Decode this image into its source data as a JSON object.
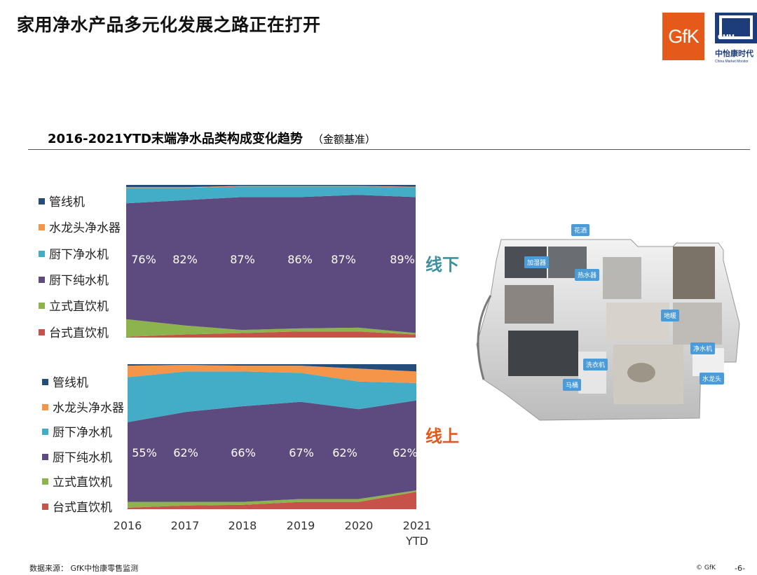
{
  "header": {
    "title": "家用净水产品多元化发展之路正在打开",
    "gfk_logo_text": "GfK",
    "cmm_logo": {
      "box_text": "CMM",
      "cn": "中怡康时代",
      "en": "China Market Monitor"
    }
  },
  "chart_header": {
    "title": "2016-2021YTD末端净水品类构成变化趋势",
    "subtitle": "（金额基准）"
  },
  "legend": [
    {
      "label": "管线机",
      "color": "#244d7c"
    },
    {
      "label": "水龙头净水器",
      "color": "#f5954a"
    },
    {
      "label": "厨下净水机",
      "color": "#43acc7"
    },
    {
      "label": "厨下纯水机",
      "color": "#5d4a7e"
    },
    {
      "label": "立式直饮机",
      "color": "#8db34f"
    },
    {
      "label": "台式直饮机",
      "color": "#c6524a"
    }
  ],
  "chart_data": [
    {
      "type": "area",
      "name": "线下",
      "categories": [
        "2016",
        "2017",
        "2018",
        "2019",
        "2020",
        "2021 YTD"
      ],
      "stack_order": [
        "台式直饮机",
        "立式直饮机",
        "厨下纯水机",
        "厨下净水机",
        "水龙头净水器",
        "管线机"
      ],
      "series": [
        {
          "name": "台式直饮机",
          "values": [
            0.5,
            2,
            3,
            4,
            4,
            2
          ]
        },
        {
          "name": "立式直饮机",
          "values": [
            11.5,
            6,
            2,
            2,
            2.5,
            1
          ]
        },
        {
          "name": "厨下纯水机",
          "values": [
            76,
            82,
            87,
            86,
            87,
            89
          ]
        },
        {
          "name": "厨下净水机",
          "values": [
            10,
            8,
            7,
            7,
            5.5,
            6.5
          ]
        },
        {
          "name": "水龙头净水器",
          "values": [
            0.5,
            0.5,
            0.3,
            0.3,
            0.3,
            0.3
          ]
        },
        {
          "name": "管线机",
          "values": [
            1.5,
            1.5,
            0.7,
            0.7,
            0.7,
            1.2
          ]
        }
      ],
      "data_labels": [
        "76%",
        "82%",
        "87%",
        "86%",
        "87%",
        "89%"
      ],
      "ylim": [
        0,
        100
      ]
    },
    {
      "type": "area",
      "name": "线上",
      "categories": [
        "2016",
        "2017",
        "2018",
        "2019",
        "2020",
        "2021 YTD"
      ],
      "stack_order": [
        "台式直饮机",
        "立式直饮机",
        "厨下纯水机",
        "厨下净水机",
        "水龙头净水器",
        "管线机"
      ],
      "series": [
        {
          "name": "台式直饮机",
          "values": [
            1,
            2.5,
            3,
            5,
            5,
            12
          ]
        },
        {
          "name": "立式直饮机",
          "values": [
            4,
            2.5,
            2,
            2,
            2,
            1
          ]
        },
        {
          "name": "厨下纯水机",
          "values": [
            55,
            62,
            66,
            67,
            62,
            62
          ]
        },
        {
          "name": "厨下净水机",
          "values": [
            31,
            28,
            24,
            20,
            19,
            12
          ]
        },
        {
          "name": "水龙头净水器",
          "values": [
            8,
            4.5,
            4,
            5,
            9,
            8
          ]
        },
        {
          "name": "管线机",
          "values": [
            1,
            0.5,
            1,
            1,
            3,
            5
          ]
        }
      ],
      "data_labels": [
        "55%",
        "62%",
        "66%",
        "67%",
        "62%",
        "62%"
      ],
      "ylim": [
        0,
        100
      ]
    }
  ],
  "x_axis_labels": [
    "2016",
    "2017",
    "2018",
    "2019",
    "2020",
    "2021",
    "YTD"
  ],
  "channel_labels": {
    "offline": "线下",
    "online": "线上"
  },
  "floorplan_tags": [
    "花洒",
    "加湿器",
    "热水器",
    "地暖",
    "净水机",
    "洗衣机",
    "马桶",
    "水龙头"
  ],
  "footer": {
    "source": "数据来源： GfK中怡康零售监测",
    "copyright": "© GfK",
    "page": "-6-"
  }
}
